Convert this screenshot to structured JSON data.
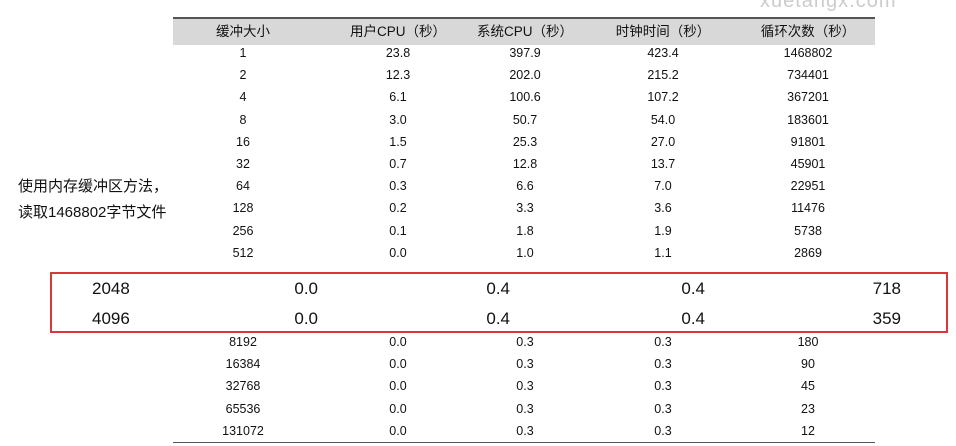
{
  "watermark": "xuetangx.com",
  "side_note": [
    "使用内存缓冲区方法，",
    "读取1468802字节文件"
  ],
  "table": {
    "headers": [
      "缓冲大小",
      "用户CPU（秒）",
      "系统CPU（秒）",
      "时钟时间（秒）",
      "循环次数（秒）"
    ],
    "rows": [
      [
        "1",
        "23.8",
        "397.9",
        "423.4",
        "1468802"
      ],
      [
        "2",
        "12.3",
        "202.0",
        "215.2",
        "734401"
      ],
      [
        "4",
        "6.1",
        "100.6",
        "107.2",
        "367201"
      ],
      [
        "8",
        "3.0",
        "50.7",
        "54.0",
        "183601"
      ],
      [
        "16",
        "1.5",
        "25.3",
        "27.0",
        "91801"
      ],
      [
        "32",
        "0.7",
        "12.8",
        "13.7",
        "45901"
      ],
      [
        "64",
        "0.3",
        "6.6",
        "7.0",
        "22951"
      ],
      [
        "128",
        "0.2",
        "3.3",
        "3.6",
        "11476"
      ],
      [
        "256",
        "0.1",
        "1.8",
        "1.9",
        "5738"
      ],
      [
        "512",
        "0.0",
        "1.0",
        "1.1",
        "2869"
      ]
    ]
  },
  "highlighted_rows": [
    [
      "2048",
      "0.0",
      "0.4",
      "0.4",
      "718"
    ],
    [
      "4096",
      "0.0",
      "0.4",
      "0.4",
      "359"
    ]
  ],
  "table_rest": [
    [
      "8192",
      "0.0",
      "0.3",
      "0.3",
      "180"
    ],
    [
      "16384",
      "0.0",
      "0.3",
      "0.3",
      "90"
    ],
    [
      "32768",
      "0.0",
      "0.3",
      "0.3",
      "45"
    ],
    [
      "65536",
      "0.0",
      "0.3",
      "0.3",
      "23"
    ],
    [
      "131072",
      "0.0",
      "0.3",
      "0.3",
      "12"
    ]
  ]
}
